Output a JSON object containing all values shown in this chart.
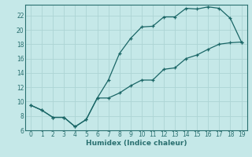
{
  "xlabel": "Humidex (Indice chaleur)",
  "bg_color": "#c5e8e8",
  "grid_color": "#add4d4",
  "line_color": "#1a6666",
  "spine_color": "#2a7070",
  "line1_x": [
    0,
    1,
    2,
    3,
    4,
    5,
    6,
    7,
    8,
    9,
    10,
    11,
    12,
    13,
    14,
    15,
    16,
    17,
    18,
    19
  ],
  "line1_y": [
    9.5,
    8.8,
    7.8,
    7.8,
    6.5,
    7.5,
    10.5,
    13.0,
    16.7,
    18.8,
    20.4,
    20.5,
    21.8,
    21.8,
    23.0,
    22.9,
    23.2,
    23.0,
    21.6,
    18.3
  ],
  "line2_x": [
    0,
    1,
    2,
    3,
    4,
    5,
    6,
    7,
    8,
    9,
    10,
    11,
    12,
    13,
    14,
    15,
    16,
    17,
    18,
    19
  ],
  "line2_y": [
    9.5,
    8.8,
    7.8,
    7.8,
    6.5,
    7.5,
    10.5,
    10.5,
    11.2,
    12.2,
    13.0,
    13.0,
    14.5,
    14.7,
    16.0,
    16.5,
    17.3,
    18.0,
    18.2,
    18.3
  ],
  "xlim": [
    -0.5,
    19.5
  ],
  "ylim": [
    6,
    23.5
  ],
  "xticks": [
    0,
    1,
    2,
    3,
    4,
    5,
    6,
    7,
    8,
    9,
    10,
    11,
    12,
    13,
    14,
    15,
    16,
    17,
    18,
    19
  ],
  "yticks": [
    6,
    8,
    10,
    12,
    14,
    16,
    18,
    20,
    22
  ],
  "tick_fontsize": 5.5,
  "xlabel_fontsize": 6.5
}
